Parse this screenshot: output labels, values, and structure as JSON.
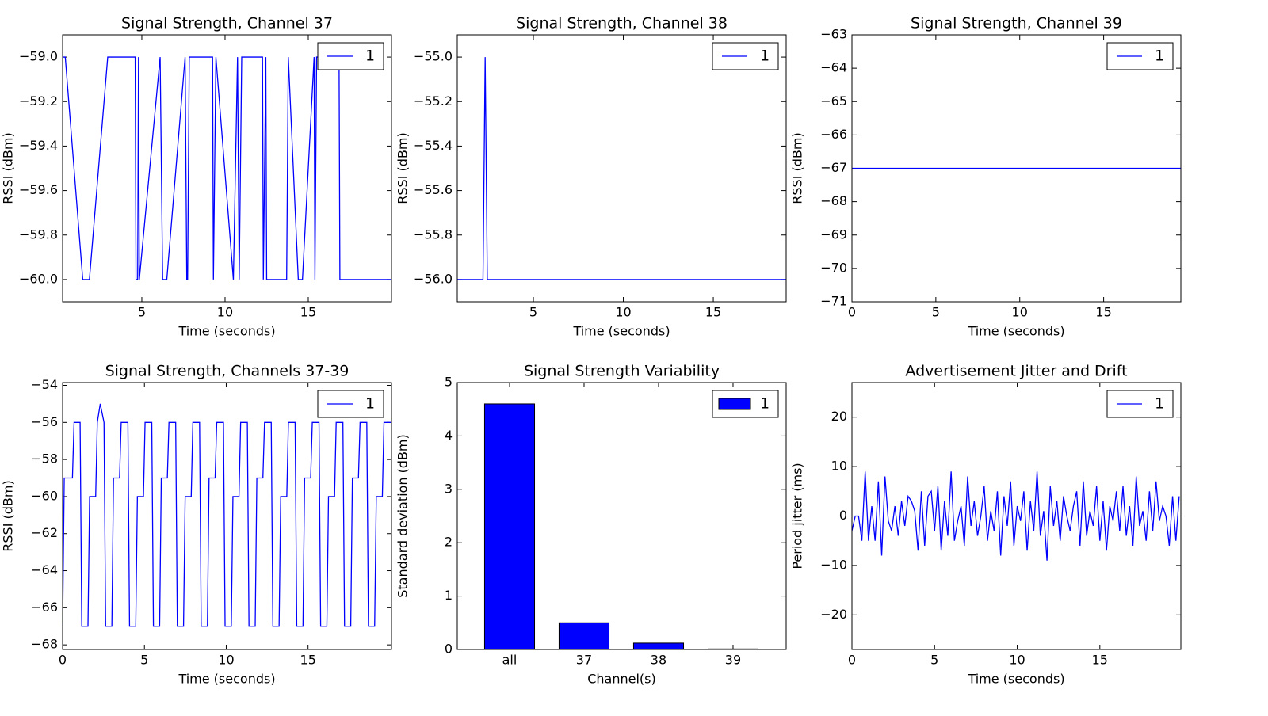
{
  "chart_data": [
    {
      "type": "line",
      "title": "Signal Strength, Channel 37",
      "x_label": "Time (seconds)",
      "y_label": "RSSI (dBm)",
      "xlim": [
        0.24,
        20.0
      ],
      "ylim": [
        -60.1,
        -58.9
      ],
      "xticks": [
        5,
        10,
        15
      ],
      "yticks": [
        {
          "value": -60.0,
          "label": "−60.0"
        },
        {
          "value": -59.8,
          "label": "−59.8"
        },
        {
          "value": -59.6,
          "label": "−59.6"
        },
        {
          "value": -59.4,
          "label": "−59.4"
        },
        {
          "value": -59.2,
          "label": "−59.2"
        },
        {
          "value": -59.0,
          "label": "−59.0"
        }
      ],
      "legend": "upper right",
      "series": [
        {
          "name": "1",
          "color": "#0000ff",
          "x": [
            0.24,
            0.4,
            1.45,
            1.85,
            2.95,
            4.6,
            4.65,
            4.75,
            4.8,
            4.85,
            6.1,
            6.25,
            6.5,
            7.6,
            7.7,
            7.75,
            7.85,
            9.25,
            9.3,
            9.45,
            10.5,
            10.75,
            10.85,
            11.0,
            12.25,
            12.3,
            12.45,
            12.5,
            13.7,
            13.8,
            14.4,
            14.65,
            15.35,
            15.4,
            15.5,
            15.55,
            16.85,
            16.9,
            20.0
          ],
          "values": [
            -59,
            -59,
            -60,
            -60,
            -59,
            -59,
            -60,
            -60,
            -59,
            -60,
            -59,
            -60,
            -60,
            -59,
            -60,
            -60,
            -59,
            -59,
            -60,
            -59,
            -60,
            -59,
            -60,
            -59,
            -59,
            -60,
            -59,
            -60,
            -60,
            -59,
            -60,
            -60,
            -59,
            -60,
            -59,
            -59,
            -59,
            -60,
            -60
          ]
        }
      ]
    },
    {
      "type": "line",
      "title": "Signal Strength, Channel 38",
      "x_label": "Time (seconds)",
      "y_label": "RSSI (dBm)",
      "xlim": [
        0.77,
        19.05
      ],
      "ylim": [
        -56.1,
        -54.9
      ],
      "xticks": [
        5,
        10,
        15
      ],
      "yticks": [
        {
          "value": -56.0,
          "label": "−56.0"
        },
        {
          "value": -55.8,
          "label": "−55.8"
        },
        {
          "value": -55.6,
          "label": "−55.6"
        },
        {
          "value": -55.4,
          "label": "−55.4"
        },
        {
          "value": -55.2,
          "label": "−55.2"
        },
        {
          "value": -55.0,
          "label": "−55.0"
        }
      ],
      "legend": "upper right",
      "series": [
        {
          "name": "1",
          "color": "#0000ff",
          "x": [
            0.77,
            2.2,
            2.32,
            2.44,
            19.05
          ],
          "values": [
            -56,
            -56,
            -55,
            -56,
            -56
          ]
        }
      ]
    },
    {
      "type": "line",
      "title": "Signal Strength, Channel 39",
      "x_label": "Time (seconds)",
      "y_label": "RSSI (dBm)",
      "xlim": [
        0,
        19.6
      ],
      "ylim": [
        -71,
        -63
      ],
      "xticks": [
        0,
        5,
        10,
        15
      ],
      "yticks": [
        {
          "value": -71,
          "label": "−71"
        },
        {
          "value": -70,
          "label": "−70"
        },
        {
          "value": -69,
          "label": "−69"
        },
        {
          "value": -68,
          "label": "−68"
        },
        {
          "value": -67,
          "label": "−67"
        },
        {
          "value": -66,
          "label": "−66"
        },
        {
          "value": -65,
          "label": "−65"
        },
        {
          "value": -64,
          "label": "−64"
        },
        {
          "value": -63,
          "label": "−63"
        }
      ],
      "legend": "upper right",
      "series": [
        {
          "name": "1",
          "color": "#0000ff",
          "x": [
            0,
            19.6
          ],
          "values": [
            -67,
            -67
          ]
        }
      ]
    },
    {
      "type": "line",
      "title": "Signal Strength, Channels 37-39",
      "x_label": "Time (seconds)",
      "y_label": "RSSI (dBm)",
      "xlim": [
        0,
        20.1
      ],
      "ylim": [
        -68.25,
        -53.85
      ],
      "xticks": [
        0,
        5,
        10,
        15
      ],
      "yticks": [
        {
          "value": -68,
          "label": "−68"
        },
        {
          "value": -66,
          "label": "−66"
        },
        {
          "value": -64,
          "label": "−64"
        },
        {
          "value": -62,
          "label": "−62"
        },
        {
          "value": -60,
          "label": "−60"
        },
        {
          "value": -58,
          "label": "−58"
        },
        {
          "value": -56,
          "label": "−56"
        },
        {
          "value": -54,
          "label": "−54"
        }
      ],
      "legend": "upper right",
      "series": [
        {
          "name": "1",
          "color": "#0000ff",
          "x": [
            0,
            0.1,
            0.6,
            0.7,
            1.07,
            1.17,
            1.55,
            1.65,
            2.02,
            2.12,
            2.3,
            2.53,
            2.63,
            3.01,
            3.11,
            3.48,
            3.58,
            3.99,
            4.09,
            4.47,
            4.57,
            4.94,
            5.04,
            5.45,
            5.55,
            5.93,
            6.03,
            6.4,
            6.5,
            6.91,
            7.01,
            7.39,
            7.49,
            7.86,
            7.96,
            8.37,
            8.47,
            8.85,
            8.95,
            9.32,
            9.42,
            9.83,
            9.93,
            10.31,
            10.41,
            10.78,
            10.88,
            11.29,
            11.39,
            11.77,
            11.87,
            12.24,
            12.34,
            12.75,
            12.85,
            13.23,
            13.33,
            13.7,
            13.8,
            14.21,
            14.31,
            14.69,
            14.79,
            15.16,
            15.26,
            15.67,
            15.77,
            16.15,
            16.25,
            16.62,
            16.72,
            17.13,
            17.23,
            17.61,
            17.71,
            18.08,
            18.18,
            18.59,
            18.69,
            19.07,
            19.17,
            19.54,
            19.64,
            20.05
          ],
          "values": [
            -67,
            -59,
            -59,
            -56,
            -56,
            -67,
            -67,
            -60,
            -60,
            -56,
            -55,
            -56,
            -67,
            -67,
            -59,
            -59,
            -56,
            -56,
            -67,
            -67,
            -60,
            -60,
            -56,
            -56,
            -67,
            -67,
            -59,
            -59,
            -56,
            -56,
            -67,
            -67,
            -60,
            -60,
            -56,
            -56,
            -67,
            -67,
            -59,
            -59,
            -56,
            -56,
            -67,
            -67,
            -60,
            -60,
            -56,
            -56,
            -67,
            -67,
            -59,
            -59,
            -56,
            -56,
            -67,
            -67,
            -60,
            -60,
            -56,
            -56,
            -67,
            -67,
            -59,
            -59,
            -56,
            -56,
            -67,
            -67,
            -60,
            -60,
            -56,
            -56,
            -67,
            -67,
            -59,
            -59,
            -56,
            -56,
            -67,
            -67,
            -60,
            -60,
            -56,
            -56
          ]
        }
      ]
    },
    {
      "type": "bar",
      "title": "Signal Strength Variability",
      "x_label": "Channel(s)",
      "y_label": "Standard deviation (dBm)",
      "categories": [
        "all",
        "37",
        "38",
        "39"
      ],
      "ylim": [
        0,
        5
      ],
      "yticks": [
        0,
        1,
        2,
        3,
        4,
        5
      ],
      "legend": "upper right",
      "series": [
        {
          "name": "1",
          "color": "#0000ff",
          "values": [
            4.6,
            0.5,
            0.12,
            0.01
          ]
        }
      ]
    },
    {
      "type": "line",
      "title": "Advertisement Jitter and Drift",
      "x_label": "Time (seconds)",
      "y_label": "Period jitter (ms)",
      "xlim": [
        0,
        19.9
      ],
      "ylim": [
        -27,
        27
      ],
      "xticks": [
        0,
        5,
        10,
        15
      ],
      "yticks": [
        {
          "value": -20,
          "label": "−20"
        },
        {
          "value": -10,
          "label": "−10"
        },
        0,
        10,
        20
      ],
      "legend": "upper right",
      "series": [
        {
          "name": "1",
          "color": "#0000ff",
          "x": [
            0,
            0.2,
            0.4,
            0.6,
            0.8,
            1,
            1.2,
            1.4,
            1.6,
            1.8,
            2,
            2.2,
            2.4,
            2.6,
            2.8,
            3,
            3.2,
            3.4,
            3.6,
            3.8,
            4,
            4.2,
            4.4,
            4.6,
            4.8,
            5,
            5.2,
            5.4,
            5.6,
            5.8,
            6,
            6.2,
            6.4,
            6.6,
            6.8,
            7,
            7.2,
            7.4,
            7.6,
            7.8,
            8,
            8.2,
            8.4,
            8.6,
            8.8,
            9,
            9.2,
            9.4,
            9.6,
            9.8,
            10,
            10.2,
            10.4,
            10.6,
            10.8,
            11,
            11.2,
            11.4,
            11.6,
            11.8,
            12,
            12.2,
            12.4,
            12.6,
            12.8,
            13,
            13.2,
            13.4,
            13.6,
            13.8,
            14,
            14.2,
            14.4,
            14.6,
            14.8,
            15,
            15.2,
            15.4,
            15.6,
            15.8,
            16,
            16.2,
            16.4,
            16.6,
            16.8,
            17,
            17.2,
            17.4,
            17.6,
            17.8,
            18,
            18.2,
            18.4,
            18.6,
            18.8,
            19,
            19.2,
            19.4,
            19.6,
            19.8
          ],
          "values": [
            -3,
            0,
            0,
            -5,
            9,
            -5,
            2,
            -5,
            7,
            -8,
            8,
            -1,
            -3,
            2,
            -4,
            3,
            -2,
            4,
            3,
            1,
            -7,
            5,
            -6,
            4,
            5,
            -3,
            6,
            -7,
            3,
            -4,
            9,
            -5,
            -1,
            2,
            -6,
            8,
            -2,
            3,
            -4,
            0,
            6,
            -5,
            1,
            -3,
            5,
            -8,
            4,
            -2,
            7,
            -6,
            2,
            -1,
            5,
            -7,
            3,
            -3,
            9,
            -4,
            1,
            -9,
            6,
            -2,
            3,
            -5,
            4,
            0,
            -3,
            2,
            5,
            -6,
            7,
            -4,
            1,
            -2,
            6,
            -5,
            3,
            -7,
            2,
            -1,
            5,
            -3,
            6,
            -4,
            2,
            -6,
            8,
            -2,
            1,
            -5,
            5,
            -3,
            7,
            -1,
            2,
            0,
            -6,
            4,
            -5,
            4
          ]
        }
      ]
    }
  ]
}
